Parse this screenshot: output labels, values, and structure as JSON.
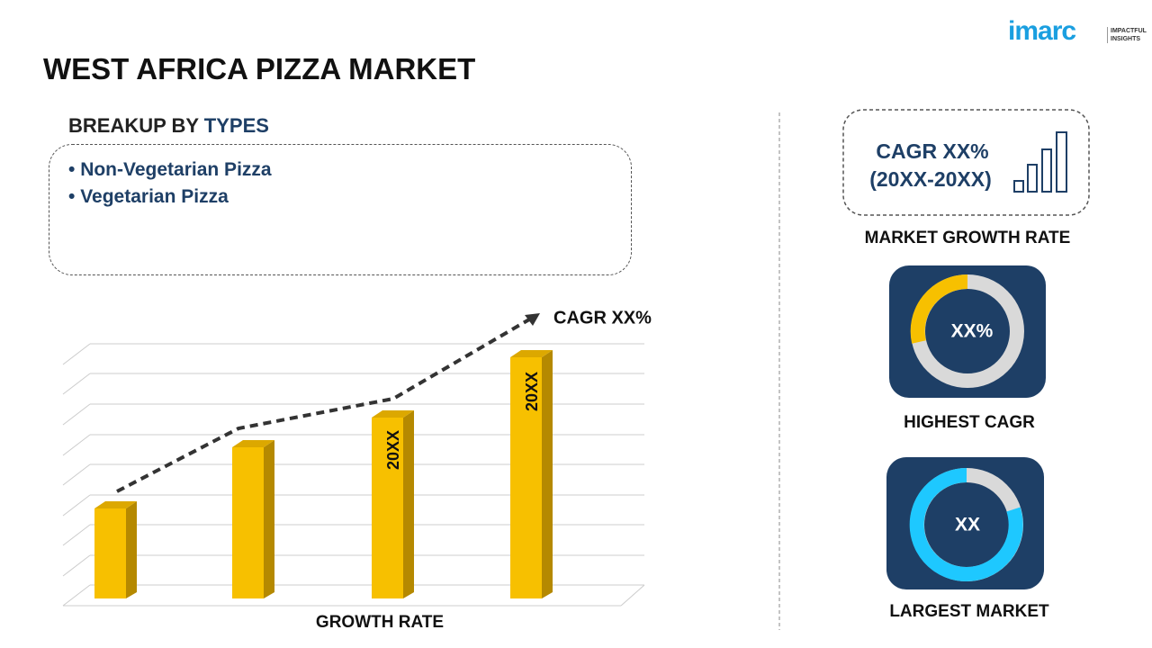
{
  "header": {
    "title": "WEST AFRICA PIZZA MARKET",
    "logo": {
      "name": "imarc",
      "tagline_line1": "IMPACTFUL",
      "tagline_line2": "INSIGHTS"
    }
  },
  "breakup": {
    "heading_prefix": "BREAKUP BY",
    "heading_highlight": "TYPES",
    "items": [
      "Non-Vegetarian Pizza",
      "Vegetarian Pizza"
    ]
  },
  "chart": {
    "bar_labels": [
      "20XX",
      "20XX"
    ],
    "trend_label": "CAGR XX%",
    "axis_label": "GROWTH RATE"
  },
  "side": {
    "cagr_line1": "CAGR XX%",
    "cagr_line2": "(20XX-20XX)",
    "cagr_caption": "MARKET GROWTH RATE",
    "highest_value": "XX%",
    "highest_caption": "HIGHEST CAGR",
    "largest_value": "XX",
    "largest_caption": "LARGEST MARKET"
  }
}
